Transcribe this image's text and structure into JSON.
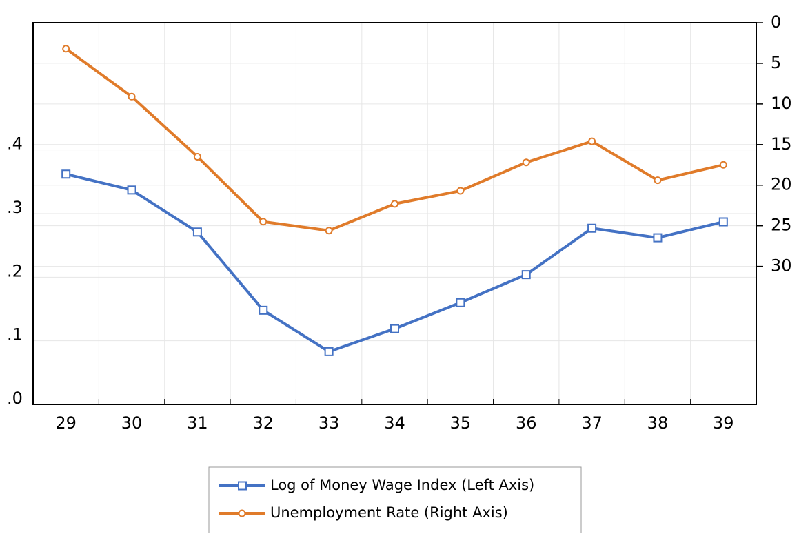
{
  "chart_data": {
    "type": "line",
    "categories": [
      "29",
      "30",
      "31",
      "32",
      "33",
      "34",
      "35",
      "36",
      "37",
      "38",
      "39"
    ],
    "series": [
      {
        "name": "Log of Money Wage Index (Left Axis)",
        "color": "#4472c4",
        "marker": "square",
        "values": [
          0.362,
          0.337,
          0.271,
          0.148,
          0.083,
          0.119,
          0.16,
          0.204,
          0.277,
          0.262,
          0.287
        ]
      },
      {
        "name": "Unemployment Rate (Right Axis)",
        "color": "#e07b2a",
        "marker": "circle",
        "axis": "y2",
        "values": [
          3.2,
          9.1,
          16.5,
          24.5,
          25.6,
          22.3,
          20.7,
          17.2,
          14.6,
          19.4,
          17.5
        ]
      }
    ],
    "ylim": [
      0,
      0.6
    ],
    "yticks": [
      {
        "value": 0,
        "label": ".0"
      },
      {
        "value": 0.1,
        "label": ".1"
      },
      {
        "value": 0.2,
        "label": ".2"
      },
      {
        "value": 0.3,
        "label": ".3"
      },
      {
        "value": 0.4,
        "label": ".4"
      }
    ],
    "y2lim": [
      0,
      47
    ],
    "y2_inverted": true,
    "y2ticks": [
      0,
      5,
      10,
      15,
      20,
      25,
      30
    ],
    "grid": true,
    "legend": "bottom"
  }
}
